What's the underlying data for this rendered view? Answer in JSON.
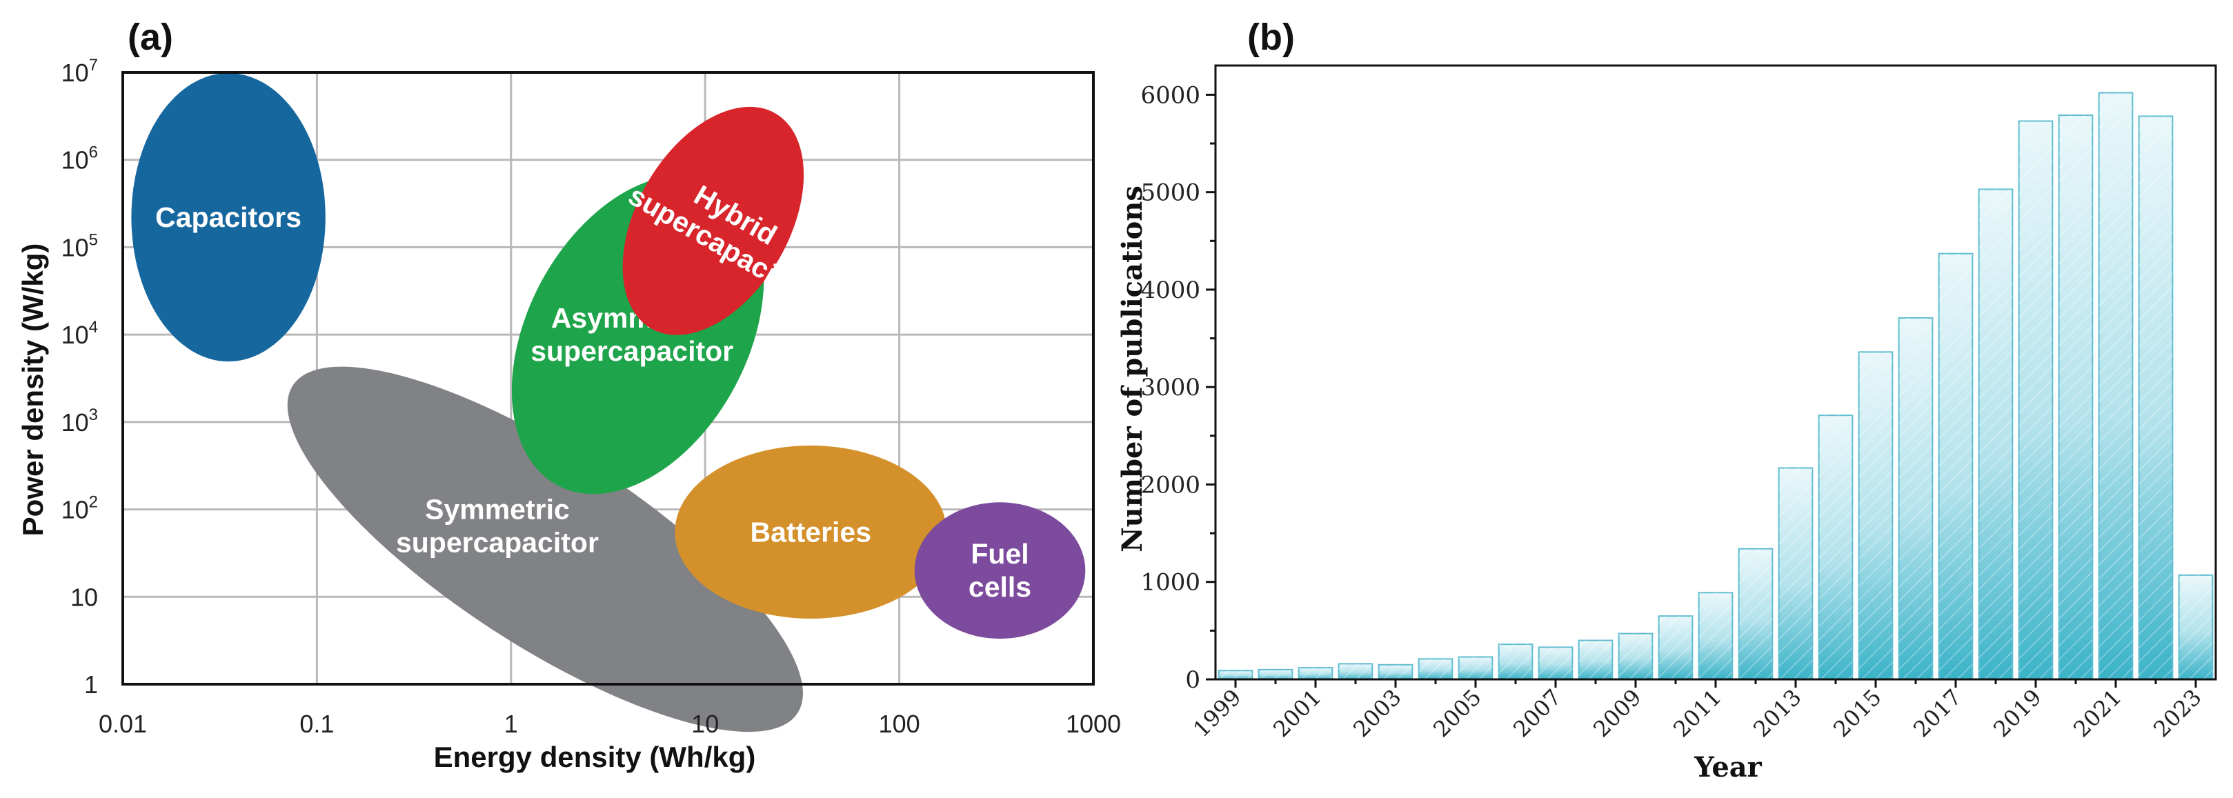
{
  "panel_a_label": "(a)",
  "panel_b_label": "(b)",
  "chart_data": [
    {
      "type": "scatter",
      "subtype": "ragone-plot",
      "panel": "(a)",
      "xlabel": "Energy density (Wh/kg)",
      "ylabel": "Power density (W/kg)",
      "xscale": "log",
      "yscale": "log",
      "xlim": [
        0.01,
        1000
      ],
      "ylim": [
        1,
        10000000
      ],
      "grid": true,
      "x_ticks": [
        {
          "value": 0.01,
          "label": "0.01"
        },
        {
          "value": 0.1,
          "label": "0.1"
        },
        {
          "value": 1,
          "label": "1"
        },
        {
          "value": 10,
          "label": "10"
        },
        {
          "value": 100,
          "label": "100"
        },
        {
          "value": 1000,
          "label": "1000"
        }
      ],
      "y_ticks": [
        {
          "value": 1,
          "base": "1",
          "exp": ""
        },
        {
          "value": 10,
          "base": "10",
          "exp": ""
        },
        {
          "value": 100,
          "base": "10",
          "exp": "2"
        },
        {
          "value": 1000,
          "base": "10",
          "exp": "3"
        },
        {
          "value": 10000,
          "base": "10",
          "exp": "4"
        },
        {
          "value": 100000,
          "base": "10",
          "exp": "5"
        },
        {
          "value": 1000000,
          "base": "10",
          "exp": "6"
        },
        {
          "value": 10000000,
          "base": "10",
          "exp": "7"
        }
      ],
      "regions": [
        {
          "id": "capacitors",
          "lines": [
            "Capacitors"
          ],
          "color": "#17679f",
          "center": [
            0.035,
            220000
          ],
          "x_half_span_decades": 0.5,
          "y_half_span_decades": 1.65,
          "angle_deg": 0,
          "label_at": [
            0.035,
            220000
          ],
          "label_angle_deg": 0
        },
        {
          "id": "symmetric",
          "lines": [
            "Symmetric",
            "supercapacitor"
          ],
          "color": "#818285",
          "center": [
            1.5,
            35
          ],
          "x_half_span_decades": 1.55,
          "y_half_span_decades": 1.1,
          "angle_deg": 33,
          "label_at": [
            0.85,
            65
          ],
          "label_angle_deg": 0
        },
        {
          "id": "asymmetric",
          "lines": [
            "Asymmetric",
            "supercapacitor"
          ],
          "color": "#1ea44a",
          "center": [
            4.5,
            10000
          ],
          "x_half_span_decades": 0.88,
          "y_half_span_decades": 1.26,
          "angle_deg": -62,
          "label_at": [
            4.2,
            10000
          ],
          "label_angle_deg": 0
        },
        {
          "id": "hybrid",
          "lines": [
            "Hybrid",
            "supercapacitor"
          ],
          "color": "#d8242b",
          "center": [
            11,
            200000
          ],
          "x_half_span_decades": 0.64,
          "y_half_span_decades": 0.87,
          "angle_deg": -60,
          "label_at": [
            13,
            160000
          ],
          "label_angle_deg": 30
        },
        {
          "id": "batteries",
          "lines": [
            "Batteries"
          ],
          "color": "#d4902a",
          "center": [
            35,
            55
          ],
          "x_half_span_decades": 0.7,
          "y_half_span_decades": 0.99,
          "angle_deg": 0,
          "label_at": [
            35,
            55
          ],
          "label_angle_deg": 0
        },
        {
          "id": "fuel-cells",
          "lines": [
            "Fuel",
            "cells"
          ],
          "color": "#7d4b9e",
          "center": [
            330,
            20
          ],
          "x_half_span_decades": 0.44,
          "y_half_span_decades": 0.78,
          "angle_deg": 0,
          "label_at": [
            330,
            20
          ],
          "label_angle_deg": 0
        }
      ]
    },
    {
      "type": "bar",
      "panel": "(b)",
      "xlabel": "Year",
      "ylabel": "Number of publications",
      "ylim": [
        0,
        6300
      ],
      "y_ticks": [
        0,
        1000,
        2000,
        3000,
        4000,
        5000,
        6000
      ],
      "x_tick_labels": [
        "1999",
        "2001",
        "2003",
        "2005",
        "2007",
        "2009",
        "2011",
        "2013",
        "2015",
        "2017",
        "2019",
        "2021",
        "2023"
      ],
      "bar_color": "#3bb3c8",
      "categories": [
        "1999",
        "2000",
        "2001",
        "2002",
        "2003",
        "2004",
        "2005",
        "2006",
        "2007",
        "2008",
        "2009",
        "2010",
        "2011",
        "2012",
        "2013",
        "2014",
        "2015",
        "2016",
        "2017",
        "2018",
        "2019",
        "2020",
        "2021",
        "2022",
        "2023"
      ],
      "values": [
        90,
        100,
        120,
        160,
        150,
        210,
        230,
        360,
        330,
        400,
        470,
        650,
        890,
        1340,
        2170,
        2710,
        3360,
        3710,
        4370,
        5030,
        5730,
        5790,
        6020,
        5780,
        1070
      ]
    }
  ]
}
